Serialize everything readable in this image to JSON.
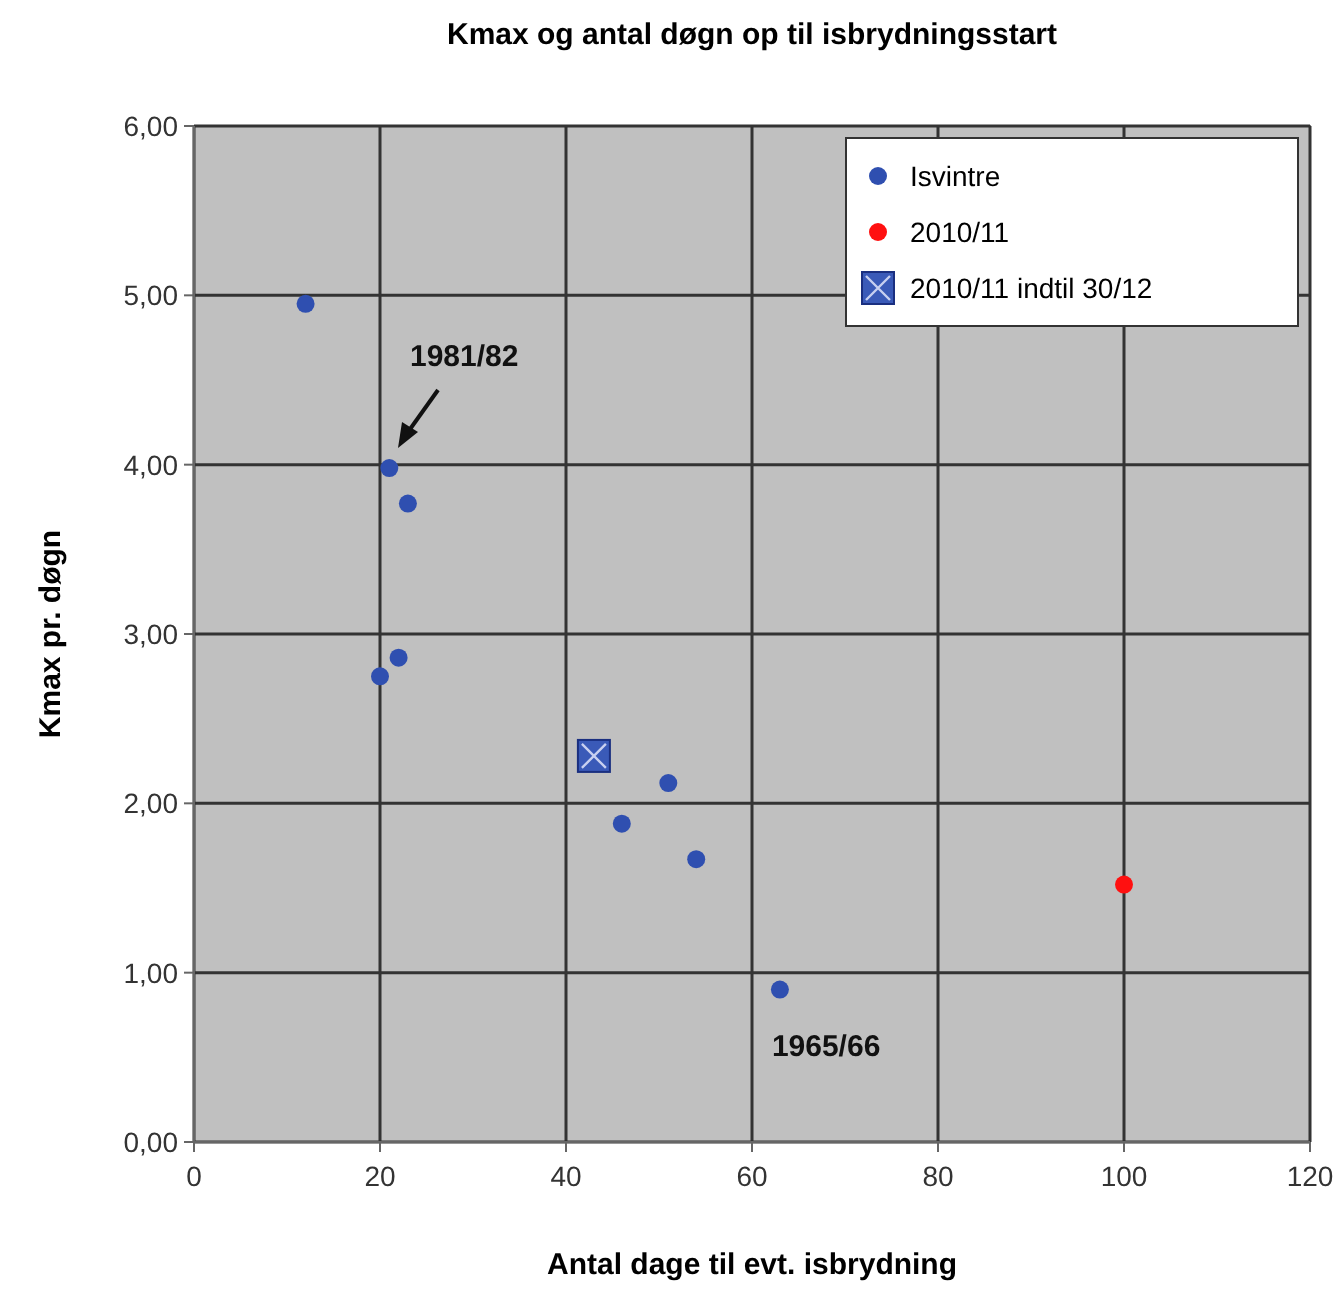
{
  "chart_data": {
    "type": "scatter",
    "title": "Kmax og antal døgn op til isbrydningsstart",
    "xlabel": "Antal dage til evt. isbrydning",
    "ylabel": "Kmax pr. døgn",
    "xlim": [
      0,
      120
    ],
    "xticks": [
      0,
      20,
      40,
      60,
      80,
      100,
      120
    ],
    "ylim": [
      0,
      6
    ],
    "yticks": [
      {
        "value": 0,
        "label": "0,00"
      },
      {
        "value": 1,
        "label": "1,00"
      },
      {
        "value": 2,
        "label": "2,00"
      },
      {
        "value": 3,
        "label": "3,00"
      },
      {
        "value": 4,
        "label": "4,00"
      },
      {
        "value": 5,
        "label": "5,00"
      },
      {
        "value": 6,
        "label": "6,00"
      }
    ],
    "grid": true,
    "legend": "top right",
    "series": [
      {
        "name": "Isvintre",
        "color": "#2f4fb0",
        "marker": "circle",
        "x": [
          12,
          21,
          23,
          22,
          20,
          46,
          51,
          54,
          63
        ],
        "values": [
          4.95,
          3.98,
          3.77,
          2.86,
          2.75,
          1.88,
          2.12,
          1.67,
          0.9
        ]
      },
      {
        "name": "2010/11",
        "color": "#ff1010",
        "marker": "circle",
        "x": [
          100
        ],
        "values": [
          1.52
        ]
      },
      {
        "name": "2010/11 indtil 30/12",
        "color": "#3a5ab8",
        "marker": "square",
        "x": [
          43
        ],
        "values": [
          2.28
        ]
      }
    ],
    "annotations": [
      "1981/82",
      {
        "text": "1965/66",
        "x": 63,
        "y": 0.9
      }
    ]
  }
}
